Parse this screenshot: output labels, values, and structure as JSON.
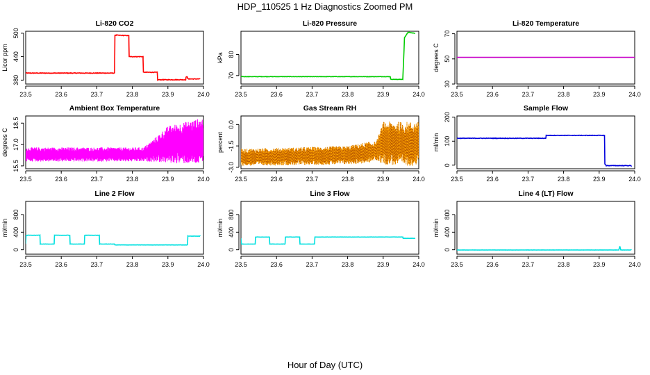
{
  "figure": {
    "title": "HDP_110525  1 Hz Diagnostics Zoomed PM",
    "xlabel": "Hour of Day (UTC)"
  },
  "chart_data": [
    {
      "type": "line",
      "title": "Li-820 CO2",
      "ylabel": "Licor ppm",
      "color": "#ff0000",
      "xlim": [
        23.5,
        24.0
      ],
      "ylim": [
        370,
        505
      ],
      "xticks": [
        "23.5",
        "23.6",
        "23.7",
        "23.8",
        "23.9",
        "24.0"
      ],
      "yticks": [
        380,
        440,
        500
      ],
      "noise": 1.5,
      "x": [
        23.5,
        23.75,
        23.751,
        23.79,
        23.791,
        23.83,
        23.831,
        23.87,
        23.871,
        23.95,
        23.951,
        23.955,
        23.956,
        23.99
      ],
      "y": [
        398,
        398,
        495,
        494,
        440,
        440,
        400,
        400,
        381,
        381,
        388,
        388,
        383,
        383
      ]
    },
    {
      "type": "line",
      "title": "Li-820 Pressure",
      "ylabel": "kPa",
      "color": "#00cc00",
      "xlim": [
        23.5,
        24.0
      ],
      "ylim": [
        66,
        91
      ],
      "xticks": [
        "23.5",
        "23.6",
        "23.7",
        "23.8",
        "23.9",
        "24.0"
      ],
      "yticks": [
        70,
        80
      ],
      "noise": 0.15,
      "x": [
        23.5,
        23.92,
        23.921,
        23.955,
        23.96,
        23.97,
        23.99
      ],
      "y": [
        69.5,
        69.5,
        68.2,
        68.2,
        88,
        90.5,
        90
      ]
    },
    {
      "type": "line",
      "title": "Li-820 Temperature",
      "ylabel": "degrees C",
      "color": "#c800c8",
      "xlim": [
        23.5,
        24.0
      ],
      "ylim": [
        30,
        72
      ],
      "xticks": [
        "23.5",
        "23.6",
        "23.7",
        "23.8",
        "23.9",
        "24.0"
      ],
      "yticks": [
        30,
        50,
        70
      ],
      "noise": 0,
      "x": [
        23.5,
        24.0
      ],
      "y": [
        51.2,
        51.2
      ]
    },
    {
      "type": "band",
      "title": "Ambient Box Temperature",
      "ylabel": "degrees C",
      "color": "#ff00ff",
      "xlim": [
        23.5,
        24.0
      ],
      "ylim": [
        15.3,
        19.0
      ],
      "xticks": [
        "23.5",
        "23.6",
        "23.7",
        "23.8",
        "23.9",
        "24.0"
      ],
      "yticks": [
        "15.5",
        "17.0",
        "18.5"
      ],
      "x": [
        23.5,
        23.83,
        23.86,
        23.9,
        24.0
      ],
      "low": [
        15.8,
        15.8,
        15.8,
        15.7,
        15.6
      ],
      "high": [
        16.8,
        16.8,
        17.4,
        18.3,
        18.9
      ]
    },
    {
      "type": "band",
      "title": "Gas Stream RH",
      "ylabel": "percent",
      "color": "#ffa500",
      "dotcolor": "#b05000",
      "xlim": [
        23.5,
        24.0
      ],
      "ylim": [
        -3.1,
        0.6
      ],
      "xticks": [
        "23.5",
        "23.6",
        "23.7",
        "23.8",
        "23.9",
        "24.0"
      ],
      "yticks": [
        "-3.0",
        "-1.5",
        "0.0"
      ],
      "x": [
        23.5,
        23.8,
        23.86,
        23.88,
        23.9,
        23.95,
        24.0
      ],
      "low": [
        -2.9,
        -2.8,
        -2.7,
        -2.5,
        -2.8,
        -2.9,
        -2.9
      ],
      "high": [
        -1.7,
        -1.5,
        -1.2,
        -1.2,
        0.2,
        0.2,
        0.2
      ]
    },
    {
      "type": "line",
      "title": "Sample Flow",
      "ylabel": "ml/min",
      "color": "#0000dd",
      "xlim": [
        23.5,
        24.0
      ],
      "ylim": [
        -15,
        205
      ],
      "xticks": [
        "23.5",
        "23.6",
        "23.7",
        "23.8",
        "23.9",
        "24.0"
      ],
      "yticks": [
        0,
        100,
        200
      ],
      "noise": 2,
      "x": [
        23.5,
        23.75,
        23.751,
        23.915,
        23.916,
        23.92,
        23.99
      ],
      "y": [
        112,
        112,
        124,
        124,
        5,
        -2,
        -2
      ]
    },
    {
      "type": "line",
      "title": "Line 2 Flow",
      "ylabel": "ml/min",
      "color": "#00e0e0",
      "xlim": [
        23.5,
        24.0
      ],
      "ylim": [
        -100,
        1100
      ],
      "xticks": [
        "23.5",
        "23.6",
        "23.7",
        "23.8",
        "23.9",
        "24.0"
      ],
      "yticks": [
        0,
        400,
        800
      ],
      "noise": 5,
      "x": [
        23.5,
        23.5,
        23.54,
        23.541,
        23.58,
        23.581,
        23.624,
        23.625,
        23.665,
        23.666,
        23.707,
        23.708,
        23.75,
        23.751,
        23.955,
        23.956,
        23.99
      ],
      "y": [
        140,
        330,
        330,
        130,
        130,
        330,
        330,
        130,
        130,
        330,
        330,
        130,
        130,
        110,
        110,
        310,
        310
      ]
    },
    {
      "type": "line",
      "title": "Line 3 Flow",
      "ylabel": "ml/min",
      "color": "#00e0e0",
      "xlim": [
        23.5,
        24.0
      ],
      "ylim": [
        -100,
        1100
      ],
      "xticks": [
        "23.5",
        "23.6",
        "23.7",
        "23.8",
        "23.9",
        "24.0"
      ],
      "yticks": [
        0,
        400,
        800
      ],
      "noise": 4,
      "x": [
        23.5,
        23.5,
        23.54,
        23.541,
        23.58,
        23.581,
        23.624,
        23.625,
        23.665,
        23.666,
        23.707,
        23.708,
        23.955,
        23.956,
        23.99
      ],
      "y": [
        260,
        130,
        130,
        290,
        290,
        130,
        130,
        290,
        290,
        130,
        130,
        290,
        290,
        260,
        260
      ]
    },
    {
      "type": "line",
      "title": "Line 4 (LT) Flow",
      "ylabel": "ml/min",
      "color": "#00e0e0",
      "xlim": [
        23.5,
        24.0
      ],
      "ylim": [
        -100,
        1100
      ],
      "xticks": [
        "23.5",
        "23.6",
        "23.7",
        "23.8",
        "23.9",
        "24.0"
      ],
      "yticks": [
        0,
        400,
        800
      ],
      "noise": 4,
      "x": [
        23.5,
        23.955,
        23.958,
        23.961,
        23.99
      ],
      "y": [
        -5,
        -5,
        80,
        -5,
        -5
      ]
    }
  ]
}
